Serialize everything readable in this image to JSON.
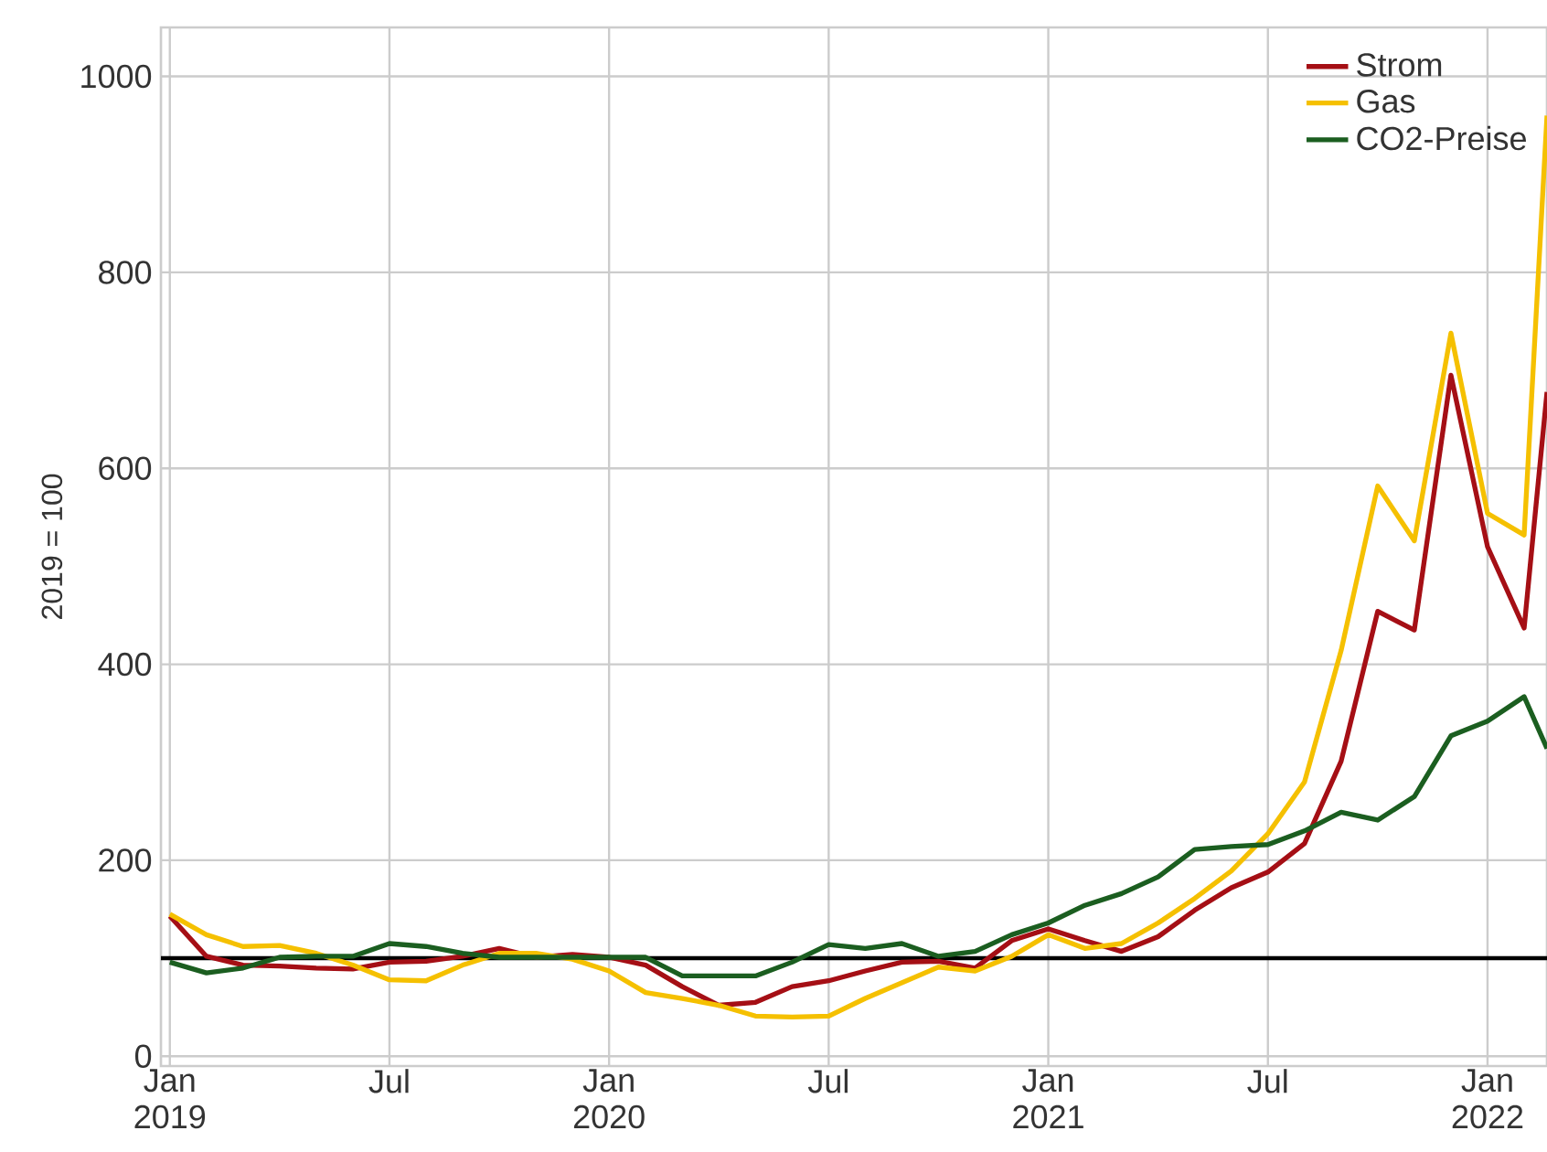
{
  "chart_data": {
    "type": "line",
    "ylabel": "2019 = 100",
    "x": [
      "2019-01",
      "2019-02",
      "2019-03",
      "2019-04",
      "2019-05",
      "2019-06",
      "2019-07",
      "2019-08",
      "2019-09",
      "2019-10",
      "2019-11",
      "2019-12",
      "2020-01",
      "2020-02",
      "2020-03",
      "2020-04",
      "2020-05",
      "2020-06",
      "2020-07",
      "2020-08",
      "2020-09",
      "2020-10",
      "2020-11",
      "2020-12",
      "2021-01",
      "2021-02",
      "2021-03",
      "2021-04",
      "2021-05",
      "2021-06",
      "2021-07",
      "2021-08",
      "2021-09",
      "2021-10",
      "2021-11",
      "2021-12",
      "2022-01",
      "2022-02",
      "2022-02-20"
    ],
    "series": [
      {
        "name": "Strom",
        "color": "#a50f15",
        "values": [
          143,
          102,
          93,
          92,
          90,
          89,
          96,
          97,
          102,
          110,
          101,
          104,
          101,
          93,
          71,
          52,
          55,
          71,
          77,
          87,
          96,
          97,
          90,
          118,
          130,
          118,
          107,
          122,
          149,
          172,
          188,
          217,
          301,
          454,
          435,
          695,
          520,
          437,
          678
        ]
      },
      {
        "name": "Gas",
        "color": "#f5c000",
        "values": [
          145,
          124,
          112,
          113,
          105,
          93,
          78,
          77,
          93,
          105,
          105,
          99,
          87,
          65,
          59,
          52,
          41,
          40,
          41,
          59,
          75,
          91,
          87,
          102,
          124,
          110,
          115,
          136,
          161,
          189,
          227,
          280,
          414,
          582,
          526,
          738,
          554,
          532,
          960
        ]
      },
      {
        "name": "CO2-Preise",
        "color": "#1b5e20",
        "values": [
          96,
          85,
          90,
          101,
          102,
          102,
          115,
          112,
          105,
          101,
          101,
          101,
          101,
          101,
          82,
          82,
          82,
          96,
          114,
          110,
          115,
          102,
          107,
          124,
          136,
          154,
          166,
          183,
          211,
          214,
          216,
          230,
          249,
          241,
          265,
          327,
          342,
          367,
          314
        ]
      }
    ],
    "xlim": [
      "2018-12-24",
      "2022-02-20"
    ],
    "xticks": [
      {
        "value": "2019-01",
        "label": "Jan 2019"
      },
      {
        "value": "2019-07",
        "label": "Jul"
      },
      {
        "value": "2020-01",
        "label": "Jan 2020"
      },
      {
        "value": "2020-07",
        "label": "Jul"
      },
      {
        "value": "2021-01",
        "label": "Jan 2021"
      },
      {
        "value": "2021-07",
        "label": "Jul"
      },
      {
        "value": "2022-01",
        "label": "Jan 2022"
      }
    ],
    "ylim": [
      -10,
      1050
    ],
    "yticks": [
      0,
      200,
      400,
      600,
      800,
      1000
    ],
    "ref_lines": [
      {
        "axis": "y",
        "value": 100,
        "color": "#000000"
      }
    ],
    "grid": true,
    "legend": "top right",
    "line_style": "solid"
  }
}
